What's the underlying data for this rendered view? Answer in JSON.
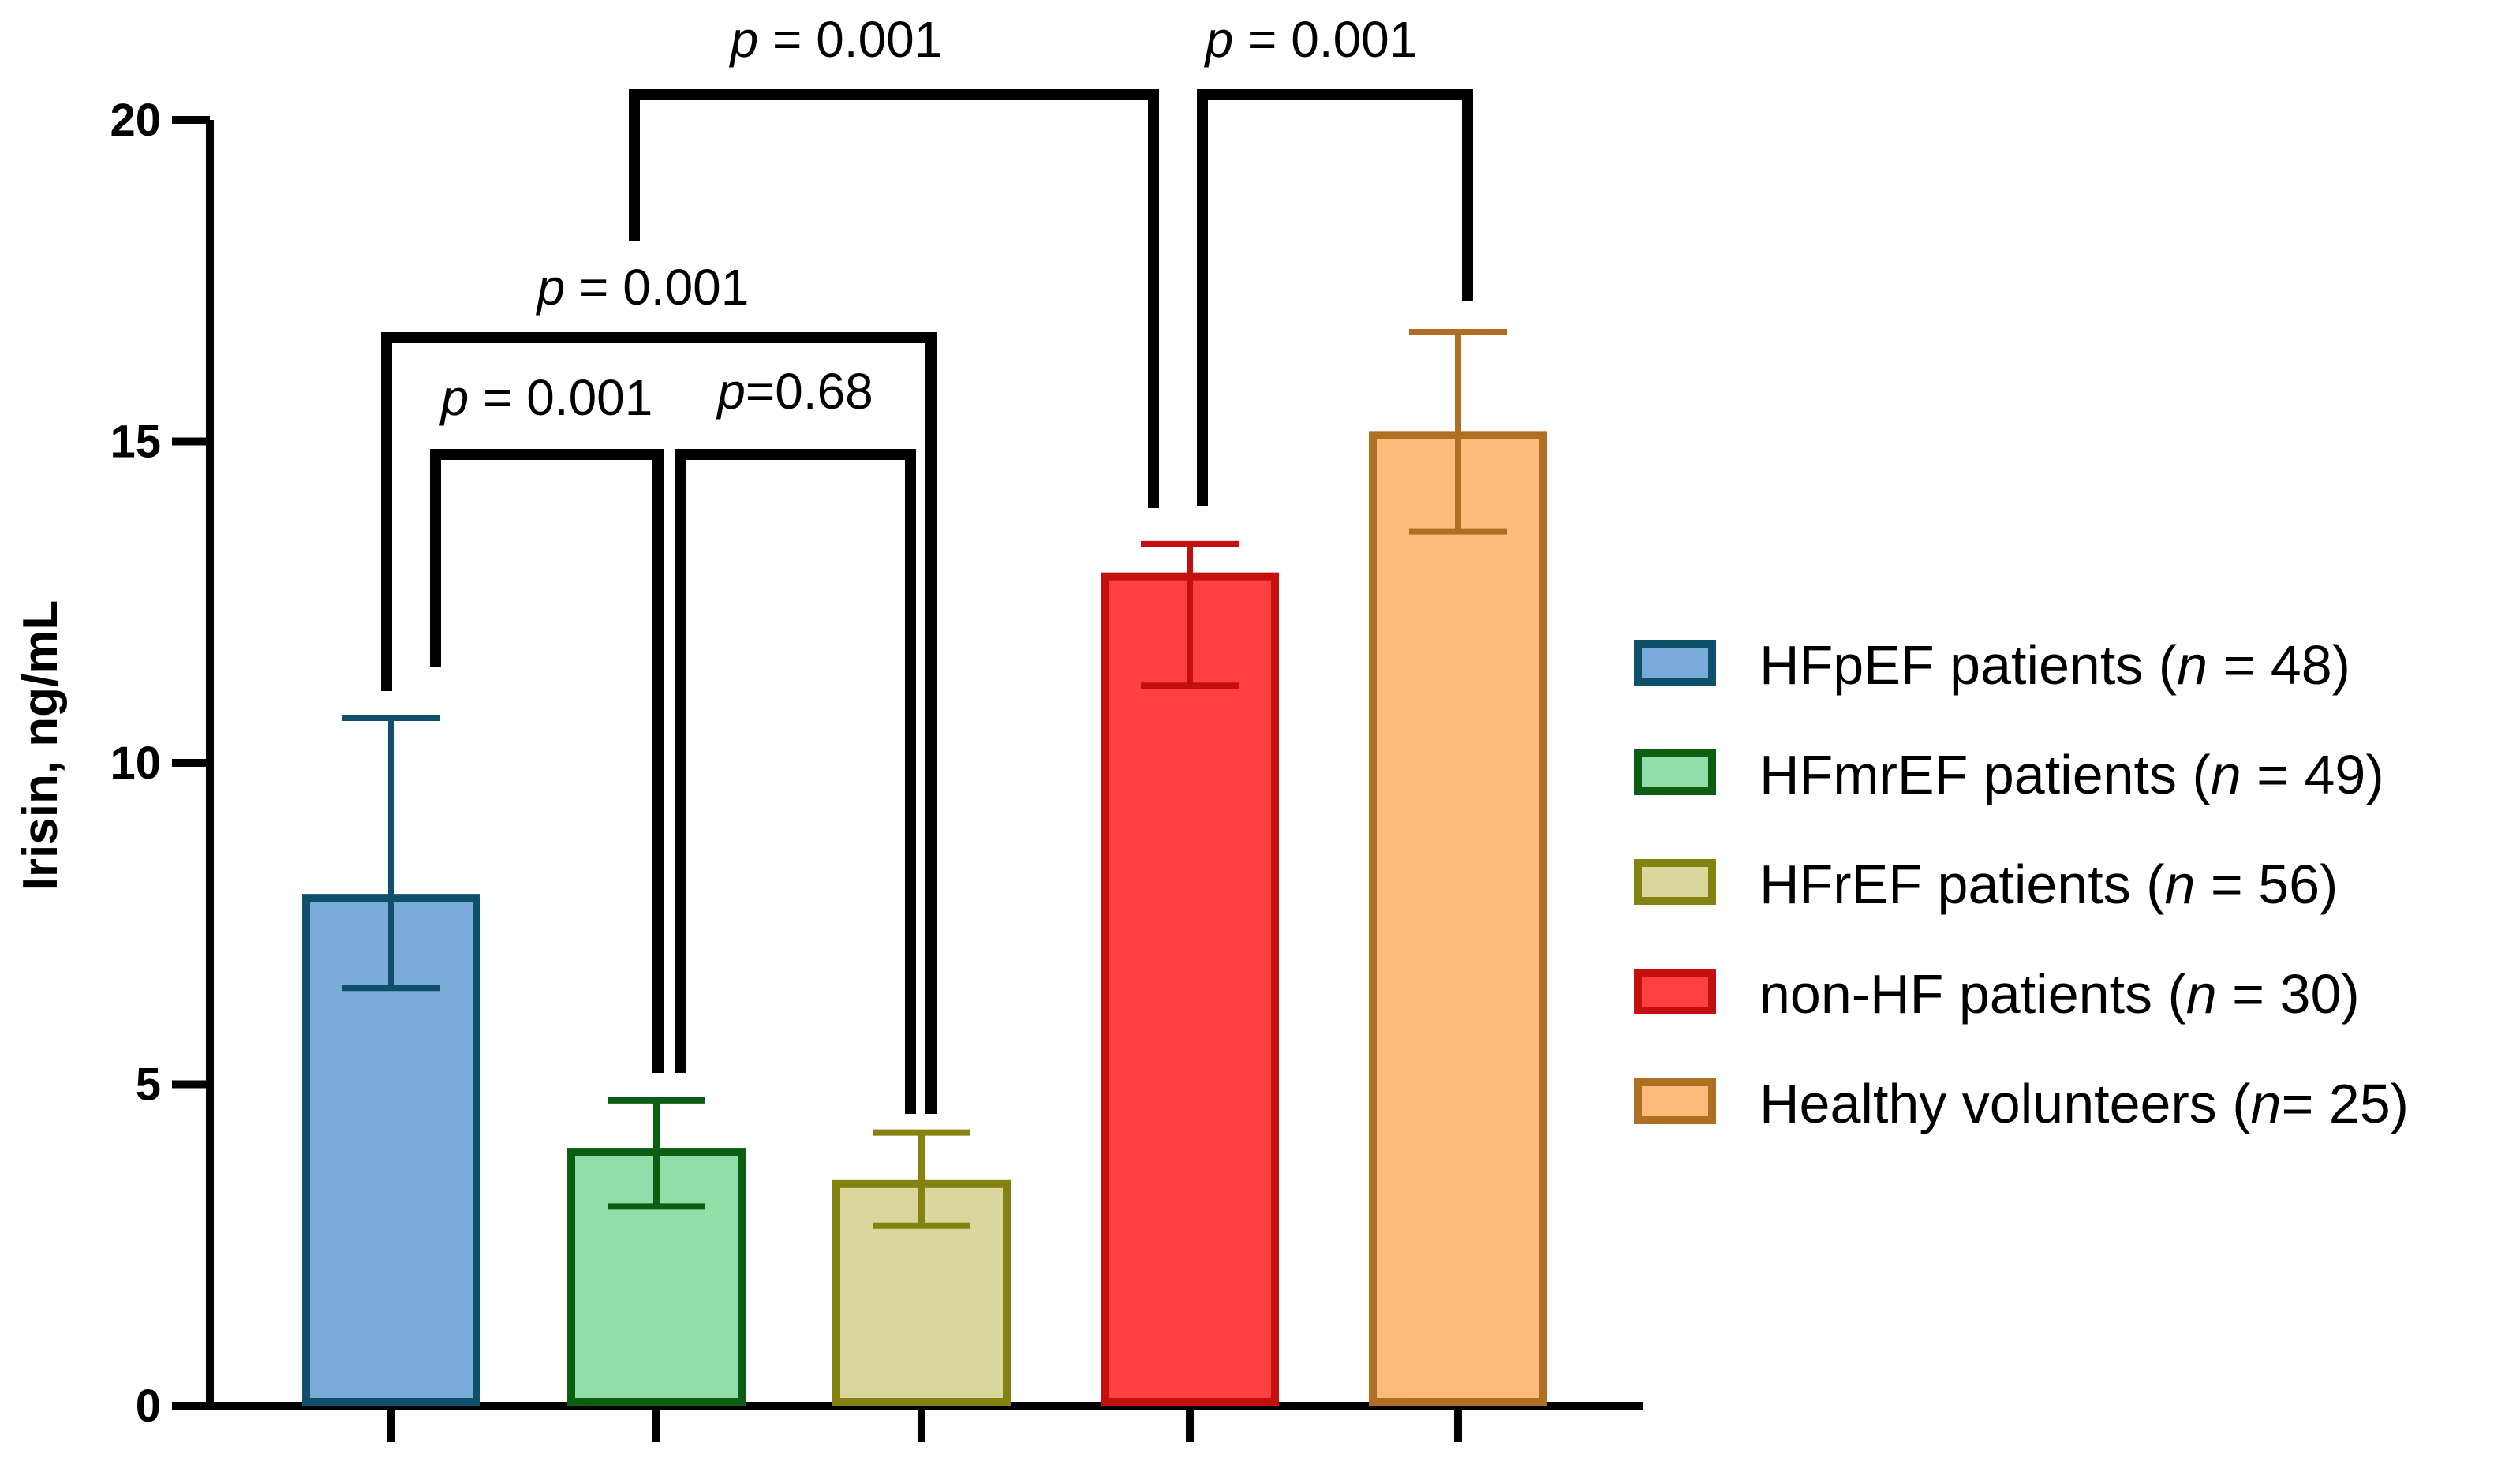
{
  "chart_data": {
    "type": "bar",
    "ylabel": "Irisin, ng/mL",
    "xlabel": "",
    "ylim": [
      0,
      20
    ],
    "yticks": [
      0,
      5,
      10,
      15,
      20
    ],
    "categories": [
      "HFpEF patients",
      "HFmrEF patients",
      "HFrEF patients",
      "non-HF patients",
      "Healthy volunteers"
    ],
    "values": [
      7.9,
      3.95,
      3.45,
      12.9,
      15.1
    ],
    "error_low": [
      6.5,
      3.1,
      2.8,
      11.2,
      13.6
    ],
    "error_high": [
      10.7,
      4.75,
      4.25,
      13.4,
      16.7
    ],
    "fill_colors": [
      "#7aaad8",
      "#93dda8",
      "#d9d79c",
      "#ff4040",
      "#ffb97a"
    ],
    "edge_colors": [
      "#0e4f6a",
      "#0b5e12",
      "#848210",
      "#c40f0f",
      "#b06e22"
    ],
    "legend": [
      {
        "name": "HFpEF patients",
        "n_label": "n",
        "n_value": " = 48)"
      },
      {
        "name": "HFmrEF patients",
        "n_label": "n",
        "n_value": " = 49)"
      },
      {
        "name": "HFrEF patients",
        "n_label": "n",
        "n_value": " = 56)"
      },
      {
        "name": "non-HF patients",
        "n_label": "n",
        "n_value": " = 30)"
      },
      {
        "name": "Healthy volunteers",
        "n_label": "n",
        "n_value": "= 25)"
      }
    ],
    "comparisons": [
      {
        "groups": [
          0,
          1
        ],
        "p_symbol": "p",
        "p_text": " = 0.001"
      },
      {
        "groups": [
          1,
          2
        ],
        "p_symbol": "p",
        "p_text": "=0.68"
      },
      {
        "groups": [
          0,
          2
        ],
        "p_symbol": "p",
        "p_text": " = 0.001"
      },
      {
        "groups": [
          1,
          3
        ],
        "p_symbol": "p",
        "p_text": " = 0.001"
      },
      {
        "groups": [
          3,
          4
        ],
        "p_symbol": "p",
        "p_text": " = 0.001"
      }
    ]
  }
}
